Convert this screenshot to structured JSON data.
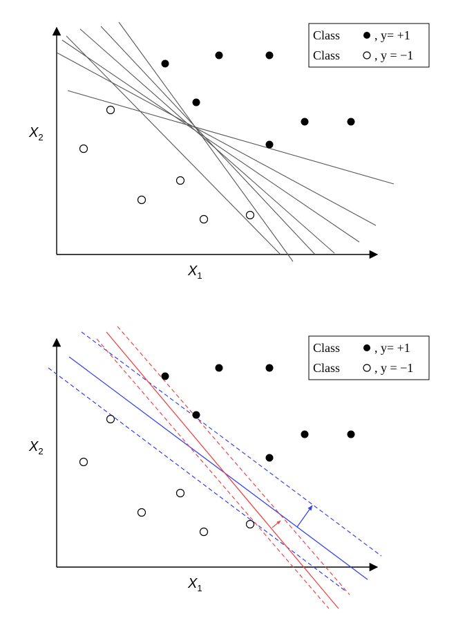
{
  "figure": {
    "colors": {
      "ink": "#000000",
      "hyperplane_gray": "#555555",
      "blue": "#3344ee",
      "red": "#ee4444"
    },
    "panels": [
      {
        "id": "top",
        "xlabel_main": "X",
        "xlabel_sub": "1",
        "ylabel_main": "X",
        "ylabel_sub": "2",
        "legend": [
          {
            "prefix": "Class",
            "marker": "filled-circle",
            "suffix": ", y= +1"
          },
          {
            "prefix": "Class",
            "marker": "open-circle",
            "suffix": ", y = −1"
          }
        ]
      },
      {
        "id": "bottom",
        "xlabel_main": "X",
        "xlabel_sub": "1",
        "ylabel_main": "X",
        "ylabel_sub": "2",
        "legend": [
          {
            "prefix": "Class",
            "marker": "filled-circle",
            "suffix": ", y= +1"
          },
          {
            "prefix": "Class",
            "marker": "open-circle",
            "suffix": ", y = −1"
          }
        ]
      }
    ]
  }
}
